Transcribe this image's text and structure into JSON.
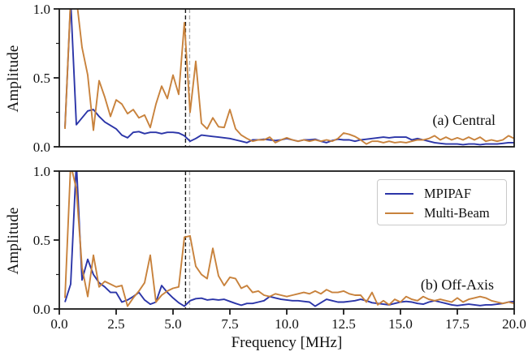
{
  "figure": {
    "background": "#ffffff",
    "xlabel": "Frequency [MHz]",
    "ylabel": "Amplitude",
    "xtick_labels": [
      "0.0",
      "2.5",
      "5.0",
      "7.5",
      "10.0",
      "12.5",
      "15.0",
      "17.5",
      "20.0"
    ],
    "ytick_labels": [
      "0.0",
      "0.5",
      "1.0"
    ],
    "frame_color": "#1a1a1a",
    "text_color": "#111111"
  },
  "legend": {
    "position": "upper right of panel b",
    "items": [
      {
        "label": "MPIPAF",
        "color": "#2b35a8"
      },
      {
        "label": "Multi-Beam",
        "color": "#c8823c"
      }
    ]
  },
  "chart_data": [
    {
      "type": "line",
      "panel_label": "(a) Central",
      "ylabel": "Amplitude",
      "xlabel": "",
      "xlim": [
        0,
        20
      ],
      "ylim": [
        0,
        1
      ],
      "xticks": [
        0,
        2.5,
        5,
        7.5,
        10,
        12.5,
        15,
        17.5,
        20
      ],
      "yticks": [
        0,
        0.5,
        1
      ],
      "yticks_minor": [
        0.25,
        0.75
      ],
      "grid": false,
      "vlines": [
        {
          "x": 5.55,
          "color": "#1a1a1a",
          "style": "dashed"
        },
        {
          "x": 5.73,
          "color": "#b0b0b0",
          "style": "dashed"
        }
      ],
      "x": [
        0.25,
        0.5,
        0.75,
        1,
        1.25,
        1.5,
        1.75,
        2,
        2.25,
        2.5,
        2.75,
        3,
        3.25,
        3.5,
        3.75,
        4,
        4.25,
        4.5,
        4.75,
        5,
        5.25,
        5.5,
        5.75,
        6,
        6.25,
        6.5,
        6.75,
        7,
        7.25,
        7.5,
        7.75,
        8,
        8.25,
        8.5,
        8.75,
        9,
        9.25,
        9.5,
        9.75,
        10,
        10.25,
        10.5,
        10.75,
        11,
        11.25,
        11.5,
        11.75,
        12,
        12.25,
        12.5,
        12.75,
        13,
        13.25,
        13.5,
        13.75,
        14,
        14.25,
        14.5,
        14.75,
        15,
        15.25,
        15.5,
        15.75,
        16,
        16.25,
        16.5,
        16.75,
        17,
        17.25,
        17.5,
        17.75,
        18,
        18.25,
        18.5,
        18.75,
        19,
        19.25,
        19.5,
        19.75,
        20
      ],
      "series": [
        {
          "name": "MPIPAF",
          "color": "#2b35a8",
          "values": [
            0.14,
            1.06,
            0.16,
            0.21,
            0.26,
            0.27,
            0.22,
            0.18,
            0.155,
            0.13,
            0.085,
            0.065,
            0.105,
            0.11,
            0.095,
            0.105,
            0.105,
            0.095,
            0.105,
            0.105,
            0.1,
            0.08,
            0.04,
            0.06,
            0.085,
            0.08,
            0.075,
            0.07,
            0.065,
            0.06,
            0.05,
            0.04,
            0.03,
            0.05,
            0.05,
            0.055,
            0.05,
            0.045,
            0.05,
            0.06,
            0.05,
            0.04,
            0.05,
            0.05,
            0.055,
            0.04,
            0.03,
            0.045,
            0.055,
            0.05,
            0.05,
            0.04,
            0.05,
            0.055,
            0.06,
            0.065,
            0.07,
            0.065,
            0.07,
            0.07,
            0.07,
            0.05,
            0.06,
            0.05,
            0.04,
            0.03,
            0.025,
            0.02,
            0.02,
            0.02,
            0.015,
            0.02,
            0.02,
            0.015,
            0.02,
            0.02,
            0.02,
            0.025,
            0.03,
            0.03
          ]
        },
        {
          "name": "Multi-Beam",
          "color": "#c8823c",
          "values": [
            0.13,
            1.08,
            1.08,
            0.72,
            0.52,
            0.12,
            0.48,
            0.36,
            0.22,
            0.34,
            0.31,
            0.24,
            0.27,
            0.21,
            0.23,
            0.14,
            0.31,
            0.44,
            0.35,
            0.52,
            0.38,
            0.9,
            0.25,
            0.62,
            0.17,
            0.13,
            0.21,
            0.145,
            0.14,
            0.27,
            0.13,
            0.085,
            0.06,
            0.04,
            0.05,
            0.05,
            0.07,
            0.03,
            0.05,
            0.065,
            0.05,
            0.04,
            0.05,
            0.04,
            0.05,
            0.04,
            0.05,
            0.04,
            0.06,
            0.1,
            0.09,
            0.075,
            0.05,
            0.02,
            0.04,
            0.04,
            0.03,
            0.04,
            0.03,
            0.035,
            0.03,
            0.04,
            0.05,
            0.05,
            0.06,
            0.08,
            0.05,
            0.07,
            0.05,
            0.065,
            0.05,
            0.07,
            0.05,
            0.07,
            0.04,
            0.05,
            0.04,
            0.05,
            0.08,
            0.06
          ]
        }
      ]
    },
    {
      "type": "line",
      "panel_label": "(b) Off-Axis",
      "ylabel": "Amplitude",
      "xlabel": "Frequency [MHz]",
      "xlim": [
        0,
        20
      ],
      "ylim": [
        0,
        1
      ],
      "xticks": [
        0,
        2.5,
        5,
        7.5,
        10,
        12.5,
        15,
        17.5,
        20
      ],
      "yticks": [
        0,
        0.5,
        1
      ],
      "yticks_minor": [
        0.25,
        0.75
      ],
      "grid": false,
      "vlines": [
        {
          "x": 5.55,
          "color": "#1a1a1a",
          "style": "dashed"
        },
        {
          "x": 5.73,
          "color": "#b0b0b0",
          "style": "dashed"
        }
      ],
      "x": [
        0.25,
        0.5,
        0.75,
        1,
        1.25,
        1.5,
        1.75,
        2,
        2.25,
        2.5,
        2.75,
        3,
        3.25,
        3.5,
        3.75,
        4,
        4.25,
        4.5,
        4.75,
        5,
        5.25,
        5.5,
        5.75,
        6,
        6.25,
        6.5,
        6.75,
        7,
        7.25,
        7.5,
        7.75,
        8,
        8.25,
        8.5,
        8.75,
        9,
        9.25,
        9.5,
        9.75,
        10,
        10.25,
        10.5,
        10.75,
        11,
        11.25,
        11.5,
        11.75,
        12,
        12.25,
        12.5,
        12.75,
        13,
        13.25,
        13.5,
        13.75,
        14,
        14.25,
        14.5,
        14.75,
        15,
        15.25,
        15.5,
        15.75,
        16,
        16.25,
        16.5,
        16.75,
        17,
        17.25,
        17.5,
        17.75,
        18,
        18.25,
        18.5,
        18.75,
        19,
        19.25,
        19.5,
        19.75,
        20
      ],
      "series": [
        {
          "name": "MPIPAF",
          "color": "#2b35a8",
          "values": [
            0.05,
            0.18,
            1.06,
            0.21,
            0.36,
            0.25,
            0.19,
            0.16,
            0.12,
            0.12,
            0.05,
            0.065,
            0.09,
            0.12,
            0.065,
            0.035,
            0.05,
            0.17,
            0.12,
            0.08,
            0.045,
            0.02,
            0.06,
            0.075,
            0.078,
            0.065,
            0.07,
            0.065,
            0.07,
            0.055,
            0.04,
            0.027,
            0.04,
            0.04,
            0.05,
            0.06,
            0.09,
            0.08,
            0.07,
            0.065,
            0.06,
            0.06,
            0.055,
            0.05,
            0.02,
            0.045,
            0.07,
            0.06,
            0.05,
            0.05,
            0.055,
            0.06,
            0.07,
            0.06,
            0.045,
            0.04,
            0.035,
            0.03,
            0.04,
            0.05,
            0.055,
            0.05,
            0.04,
            0.035,
            0.05,
            0.06,
            0.05,
            0.04,
            0.03,
            0.025,
            0.03,
            0.035,
            0.03,
            0.025,
            0.03,
            0.03,
            0.035,
            0.04,
            0.05,
            0.055
          ]
        },
        {
          "name": "Multi-Beam",
          "color": "#c8823c",
          "values": [
            0.08,
            1.05,
            0.87,
            0.3,
            0.09,
            0.39,
            0.16,
            0.2,
            0.18,
            0.16,
            0.17,
            0.02,
            0.08,
            0.13,
            0.19,
            0.39,
            0.05,
            0.1,
            0.13,
            0.15,
            0.16,
            0.52,
            0.53,
            0.31,
            0.25,
            0.22,
            0.44,
            0.24,
            0.17,
            0.23,
            0.22,
            0.15,
            0.17,
            0.12,
            0.13,
            0.1,
            0.09,
            0.11,
            0.1,
            0.09,
            0.1,
            0.11,
            0.12,
            0.11,
            0.13,
            0.11,
            0.14,
            0.12,
            0.12,
            0.13,
            0.11,
            0.1,
            0.1,
            0.05,
            0.12,
            0.03,
            0.06,
            0.03,
            0.07,
            0.05,
            0.09,
            0.07,
            0.06,
            0.09,
            0.07,
            0.06,
            0.07,
            0.06,
            0.05,
            0.08,
            0.05,
            0.07,
            0.08,
            0.09,
            0.08,
            0.06,
            0.05,
            0.04,
            0.05,
            0.04
          ]
        }
      ]
    }
  ]
}
